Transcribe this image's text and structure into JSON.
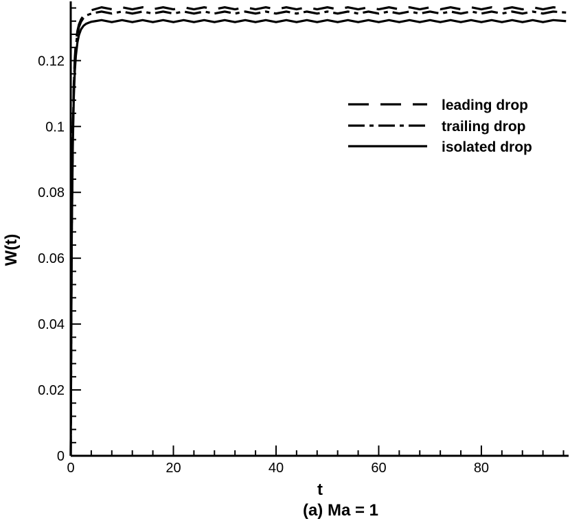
{
  "chart_data": {
    "type": "line",
    "caption": "(a) Ma = 1",
    "xlabel": "t",
    "ylabel": "W(t)",
    "xlim": [
      0,
      97
    ],
    "ylim": [
      0,
      0.138
    ],
    "xticks": [
      0,
      20,
      40,
      60,
      80
    ],
    "xtick_labels": [
      "0",
      "20",
      "40",
      "60",
      "80"
    ],
    "yticks": [
      0,
      0.02,
      0.04,
      0.06,
      0.08,
      0.1,
      0.12
    ],
    "ytick_labels": [
      "0",
      "0.02",
      "0.04",
      "0.06",
      "0.08",
      "0.1",
      "0.12"
    ],
    "grid": false,
    "legend_position": "upper-right",
    "series": [
      {
        "name": "leading drop",
        "line_style": "dashed",
        "color": "#000000",
        "x": [
          0,
          0.1,
          0.2,
          0.4,
          0.6,
          0.8,
          1.0,
          1.3,
          1.6,
          2.0,
          2.5,
          3.0,
          3.5,
          4,
          6,
          8,
          10,
          12,
          14,
          16,
          18,
          20,
          22,
          24,
          26,
          28,
          30,
          32,
          34,
          36,
          38,
          40,
          42,
          44,
          46,
          48,
          50,
          52,
          54,
          56,
          58,
          60,
          62,
          64,
          66,
          68,
          70,
          72,
          74,
          76,
          78,
          80,
          82,
          84,
          86,
          88,
          90,
          92,
          94,
          96.5
        ],
        "y": [
          0,
          0.04,
          0.07,
          0.098,
          0.113,
          0.121,
          0.1255,
          0.129,
          0.131,
          0.1325,
          0.1337,
          0.1344,
          0.1347,
          0.1353,
          0.1362,
          0.1356,
          0.1362,
          0.1356,
          0.1362,
          0.1356,
          0.1362,
          0.1356,
          0.1362,
          0.1356,
          0.1362,
          0.1356,
          0.1362,
          0.1356,
          0.1362,
          0.1356,
          0.1362,
          0.1356,
          0.1362,
          0.1356,
          0.1362,
          0.1356,
          0.1362,
          0.1356,
          0.1362,
          0.1356,
          0.1362,
          0.1356,
          0.1362,
          0.1356,
          0.1362,
          0.1356,
          0.1362,
          0.1356,
          0.1362,
          0.1356,
          0.1362,
          0.1356,
          0.1362,
          0.1356,
          0.1362,
          0.1356,
          0.1362,
          0.1356,
          0.1362,
          0.1358
        ]
      },
      {
        "name": "trailing drop",
        "line_style": "dashdot",
        "color": "#000000",
        "x": [
          0,
          0.1,
          0.2,
          0.4,
          0.6,
          0.8,
          1.0,
          1.3,
          1.6,
          2.0,
          2.5,
          3.0,
          3.5,
          4,
          6,
          8,
          10,
          12,
          14,
          16,
          18,
          20,
          22,
          24,
          26,
          28,
          30,
          32,
          34,
          36,
          38,
          40,
          42,
          44,
          46,
          48,
          50,
          52,
          54,
          56,
          58,
          60,
          62,
          64,
          66,
          68,
          70,
          72,
          74,
          76,
          78,
          80,
          82,
          84,
          86,
          88,
          90,
          92,
          94,
          96.5
        ],
        "y": [
          0,
          0.039,
          0.069,
          0.097,
          0.112,
          0.12,
          0.1245,
          0.128,
          0.1302,
          0.1318,
          0.133,
          0.1337,
          0.134,
          0.1343,
          0.1349,
          0.1343,
          0.1349,
          0.1343,
          0.1349,
          0.1343,
          0.1349,
          0.1343,
          0.1349,
          0.1343,
          0.1349,
          0.1343,
          0.1349,
          0.1343,
          0.1349,
          0.1343,
          0.1349,
          0.1343,
          0.1349,
          0.1343,
          0.1349,
          0.1343,
          0.1349,
          0.1343,
          0.1349,
          0.1343,
          0.1349,
          0.1343,
          0.1349,
          0.1343,
          0.1349,
          0.1343,
          0.1349,
          0.1343,
          0.1349,
          0.1343,
          0.1349,
          0.1343,
          0.1349,
          0.1343,
          0.1349,
          0.1343,
          0.1349,
          0.1343,
          0.1349,
          0.1346
        ]
      },
      {
        "name": "isolated drop",
        "line_style": "solid",
        "color": "#000000",
        "x": [
          0,
          0.1,
          0.2,
          0.4,
          0.6,
          0.8,
          1.0,
          1.3,
          1.6,
          2.0,
          2.5,
          3.0,
          3.5,
          4,
          6,
          8,
          10,
          12,
          14,
          16,
          18,
          20,
          22,
          24,
          26,
          28,
          30,
          32,
          34,
          36,
          38,
          40,
          42,
          44,
          46,
          48,
          50,
          52,
          54,
          56,
          58,
          60,
          62,
          64,
          66,
          68,
          70,
          72,
          74,
          76,
          78,
          80,
          82,
          84,
          86,
          88,
          90,
          92,
          94,
          96.5
        ],
        "y": [
          0,
          0.038,
          0.067,
          0.094,
          0.109,
          0.117,
          0.1215,
          0.1255,
          0.1278,
          0.1295,
          0.1306,
          0.1312,
          0.1315,
          0.1318,
          0.1323,
          0.1317,
          0.1323,
          0.1317,
          0.1323,
          0.1317,
          0.1323,
          0.1317,
          0.1323,
          0.1317,
          0.1323,
          0.1317,
          0.1323,
          0.1317,
          0.1323,
          0.1317,
          0.1323,
          0.1317,
          0.1323,
          0.1317,
          0.1323,
          0.1317,
          0.1323,
          0.1317,
          0.1323,
          0.1317,
          0.1323,
          0.1317,
          0.1323,
          0.1317,
          0.1323,
          0.1317,
          0.1323,
          0.1317,
          0.1323,
          0.1317,
          0.1323,
          0.1317,
          0.1323,
          0.1317,
          0.1323,
          0.1317,
          0.1323,
          0.1317,
          0.1323,
          0.132
        ]
      }
    ]
  }
}
